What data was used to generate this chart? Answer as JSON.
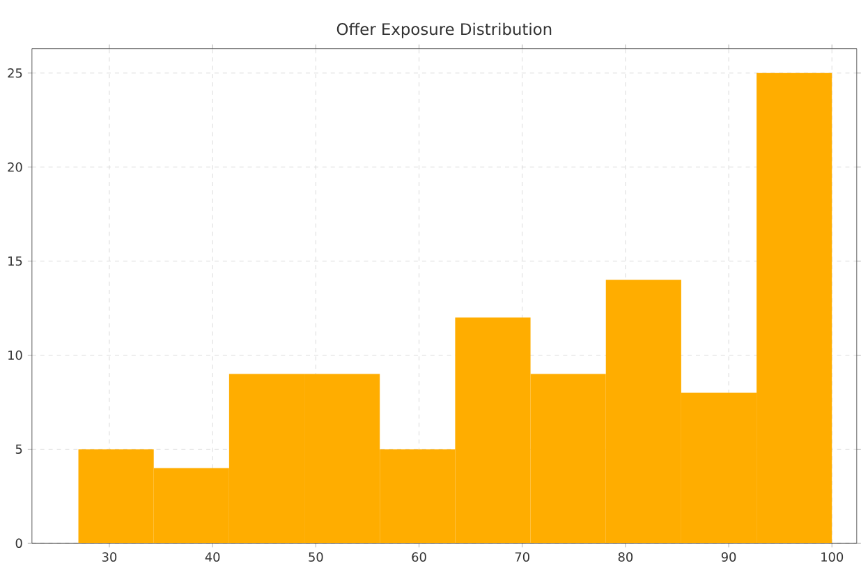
{
  "chart_data": {
    "type": "histogram",
    "title": "Offer Exposure Distribution",
    "bins": [
      27,
      34.3,
      41.6,
      48.9,
      56.2,
      63.5,
      70.8,
      78.1,
      85.4,
      92.7,
      100
    ],
    "values": [
      5,
      4,
      9,
      9,
      5,
      12,
      9,
      14,
      8,
      25
    ],
    "color": "#ffad00",
    "xlim": [
      22.5,
      102.4
    ],
    "ylim": [
      0,
      26.3
    ],
    "xticks": [
      30,
      40,
      50,
      60,
      70,
      80,
      90,
      100
    ],
    "yticks": [
      0,
      5,
      10,
      15,
      20,
      25
    ],
    "grid": true
  }
}
